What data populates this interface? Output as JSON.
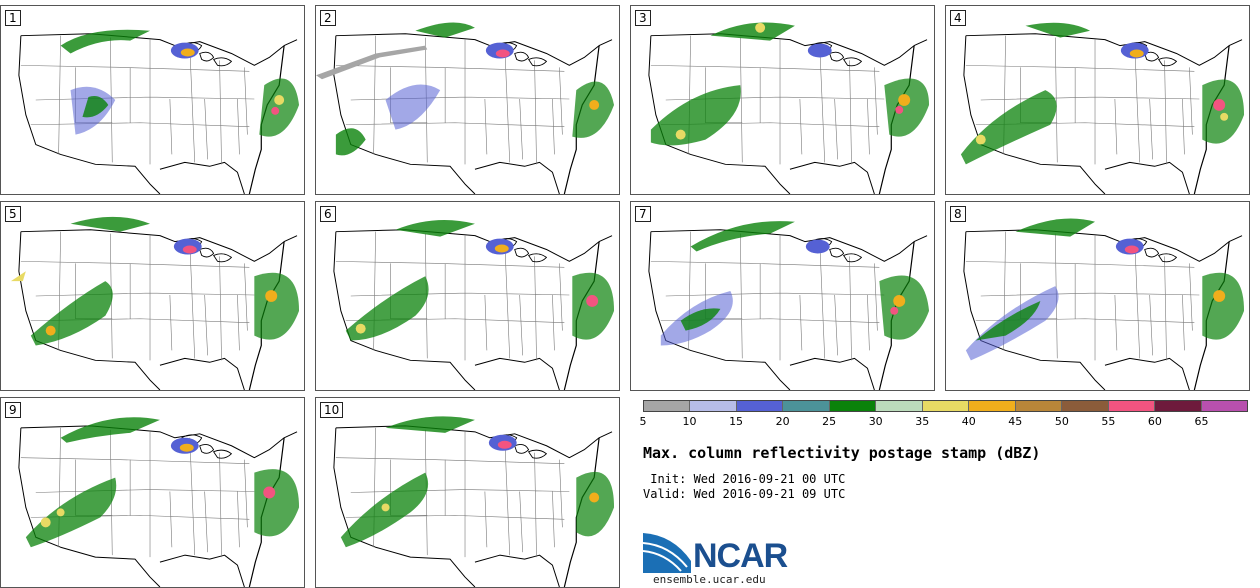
{
  "panels": [
    "1",
    "2",
    "3",
    "4",
    "5",
    "6",
    "7",
    "8",
    "9",
    "10"
  ],
  "colorbar": {
    "colors": [
      "#a6a6a6",
      "#b7bde8",
      "#5561d4",
      "#4c9299",
      "#0a820a",
      "#bcdcbc",
      "#e8da64",
      "#f0ae1c",
      "#b98639",
      "#8b5c3a",
      "#f25480",
      "#6e1a3c",
      "#b850ae"
    ],
    "ticks": [
      "5",
      "10",
      "15",
      "20",
      "25",
      "30",
      "35",
      "40",
      "45",
      "50",
      "55",
      "60",
      "65"
    ]
  },
  "title": "Max. column reflectivity postage stamp (dBZ)",
  "init": " Init: Wed 2016-09-21 00 UTC",
  "valid": "Valid: Wed 2016-09-21 09 UTC",
  "logo": {
    "text": "NCAR",
    "color": "#1b4f8f"
  },
  "url": "ensemble.ucar.edu"
}
